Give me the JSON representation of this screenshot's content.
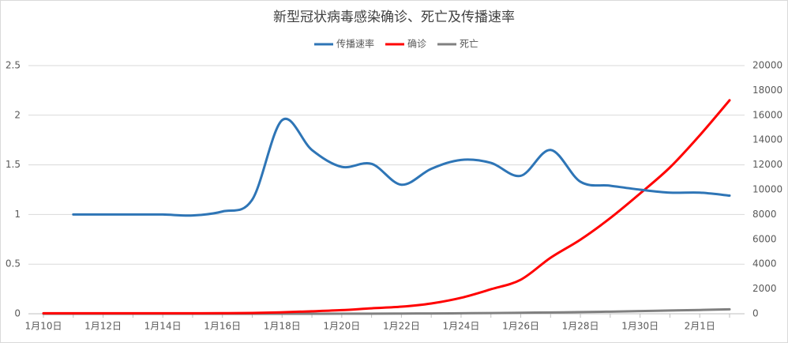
{
  "chart_data": {
    "type": "line",
    "title": "新型冠状病毒感染确诊、死亡及传播速率",
    "categories": [
      "1月10日",
      null,
      "1月12日",
      null,
      "1月14日",
      null,
      "1月16日",
      null,
      "1月18日",
      null,
      "1月20日",
      null,
      "1月22日",
      null,
      "1月24日",
      null,
      "1月26日",
      null,
      "1月28日",
      null,
      "1月30日",
      null,
      "2月1日",
      null
    ],
    "series": [
      {
        "name": "传播速率",
        "color": "#2e75b6",
        "values": [
          null,
          1.0,
          1.0,
          1.0,
          1.0,
          0.99,
          1.03,
          1.15,
          1.95,
          1.65,
          1.48,
          1.51,
          1.3,
          1.46,
          1.55,
          1.52,
          1.39,
          1.65,
          1.33,
          1.29,
          1.25,
          1.22,
          1.22,
          1.19
        ]
      },
      {
        "name": "确诊",
        "color": "#ff0000",
        "axis": "y2",
        "values": [
          41,
          41,
          41,
          41,
          41,
          41,
          45,
          62,
          121,
          198,
          291,
          440,
          571,
          830,
          1287,
          1975,
          2744,
          4515,
          5974,
          7711,
          9692,
          11791,
          14380,
          17205
        ]
      },
      {
        "name": "死亡",
        "color": "#808080",
        "axis": "y2",
        "values": [
          1,
          1,
          1,
          1,
          1,
          2,
          2,
          2,
          3,
          3,
          6,
          9,
          17,
          25,
          41,
          56,
          80,
          106,
          132,
          170,
          213,
          259,
          304,
          361
        ]
      }
    ],
    "ylim": [
      0,
      2.5
    ],
    "yticks": [
      0,
      0.5,
      1,
      1.5,
      2,
      2.5
    ],
    "y2lim": [
      0,
      20000
    ],
    "y2ticks": [
      0,
      2000,
      4000,
      6000,
      8000,
      10000,
      12000,
      14000,
      16000,
      18000,
      20000
    ],
    "grid": true,
    "legend": "top"
  }
}
